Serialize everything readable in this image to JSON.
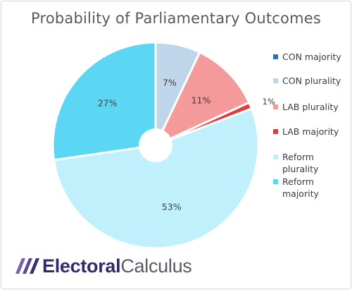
{
  "title": "Probability of Parliamentary Outcomes",
  "chart_data": {
    "type": "pie",
    "donut": true,
    "slices": [
      {
        "label": "CON majority",
        "value": 0,
        "color": "#2e6fba",
        "show_label": false
      },
      {
        "label": "CON plurality",
        "value": 7,
        "color": "#bfd6ea",
        "show_label": true,
        "data_label": "7%"
      },
      {
        "label": "LAB plurality",
        "value": 11,
        "color": "#f59a9a",
        "show_label": true,
        "data_label": "11%"
      },
      {
        "label": "LAB majority",
        "value": 1,
        "color": "#e03c3c",
        "show_label": true,
        "data_label": "1%"
      },
      {
        "label": "Reform plurality",
        "value": 53,
        "color": "#bff0fb",
        "show_label": true,
        "data_label": "53%"
      },
      {
        "label": "Reform majority",
        "value": 27,
        "color": "#5bd6f3",
        "show_label": true,
        "data_label": "27%"
      }
    ],
    "legend_position": "right"
  },
  "logo": {
    "part1": "Electoral",
    "part2": "Calculus"
  }
}
